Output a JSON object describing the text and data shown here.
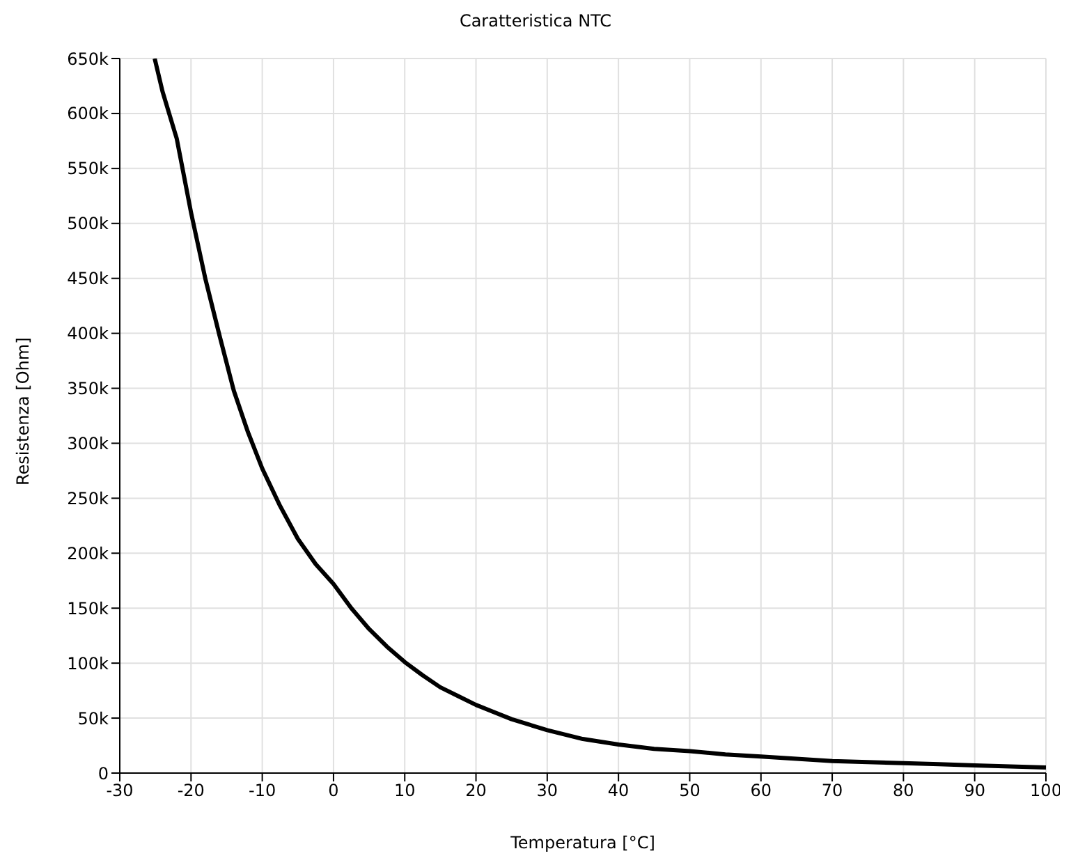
{
  "chart_data": {
    "type": "line",
    "title": "Caratteristica NTC",
    "xlabel": "Temperatura [°C]",
    "ylabel": "Resistenza [Ohm]",
    "x": [
      -25.1,
      -24,
      -22,
      -20,
      -18,
      -16,
      -14,
      -12,
      -10,
      -7.5,
      -5,
      -2.5,
      0,
      2.5,
      5,
      7.5,
      10,
      12.5,
      15,
      17.5,
      20,
      25,
      30,
      35,
      40,
      45,
      50,
      55,
      60,
      65,
      70,
      75,
      80,
      85,
      90,
      95,
      100
    ],
    "series": [
      {
        "color": "#000000",
        "values": [
          650000,
          620000,
          577000,
          510000,
          450000,
          398000,
          348000,
          310000,
          277000,
          243000,
          213000,
          190000,
          172000,
          150000,
          131000,
          115000,
          101000,
          89000,
          78000,
          70000,
          62000,
          49000,
          39000,
          31000,
          26000,
          22000,
          20000,
          17000,
          15000,
          13000,
          11000,
          10000,
          9000,
          8000,
          7000,
          6000,
          5000
        ]
      }
    ],
    "xlim": [
      -30,
      100
    ],
    "xticks": [
      -30,
      -20,
      -10,
      0,
      10,
      20,
      30,
      40,
      50,
      60,
      70,
      80,
      90,
      100
    ],
    "ylim": [
      0,
      650000
    ],
    "yticks": [
      {
        "value": 0,
        "label": "0"
      },
      {
        "value": 50000,
        "label": "50k"
      },
      {
        "value": 100000,
        "label": "100k"
      },
      {
        "value": 150000,
        "label": "150k"
      },
      {
        "value": 200000,
        "label": "200k"
      },
      {
        "value": 250000,
        "label": "250k"
      },
      {
        "value": 300000,
        "label": "300k"
      },
      {
        "value": 350000,
        "label": "350k"
      },
      {
        "value": 400000,
        "label": "400k"
      },
      {
        "value": 450000,
        "label": "450k"
      },
      {
        "value": 500000,
        "label": "500k"
      },
      {
        "value": 550000,
        "label": "550k"
      },
      {
        "value": 600000,
        "label": "600k"
      },
      {
        "value": 650000,
        "label": "650k"
      }
    ],
    "grid": true,
    "marker": "none",
    "line_style": "solid",
    "legend": false
  }
}
